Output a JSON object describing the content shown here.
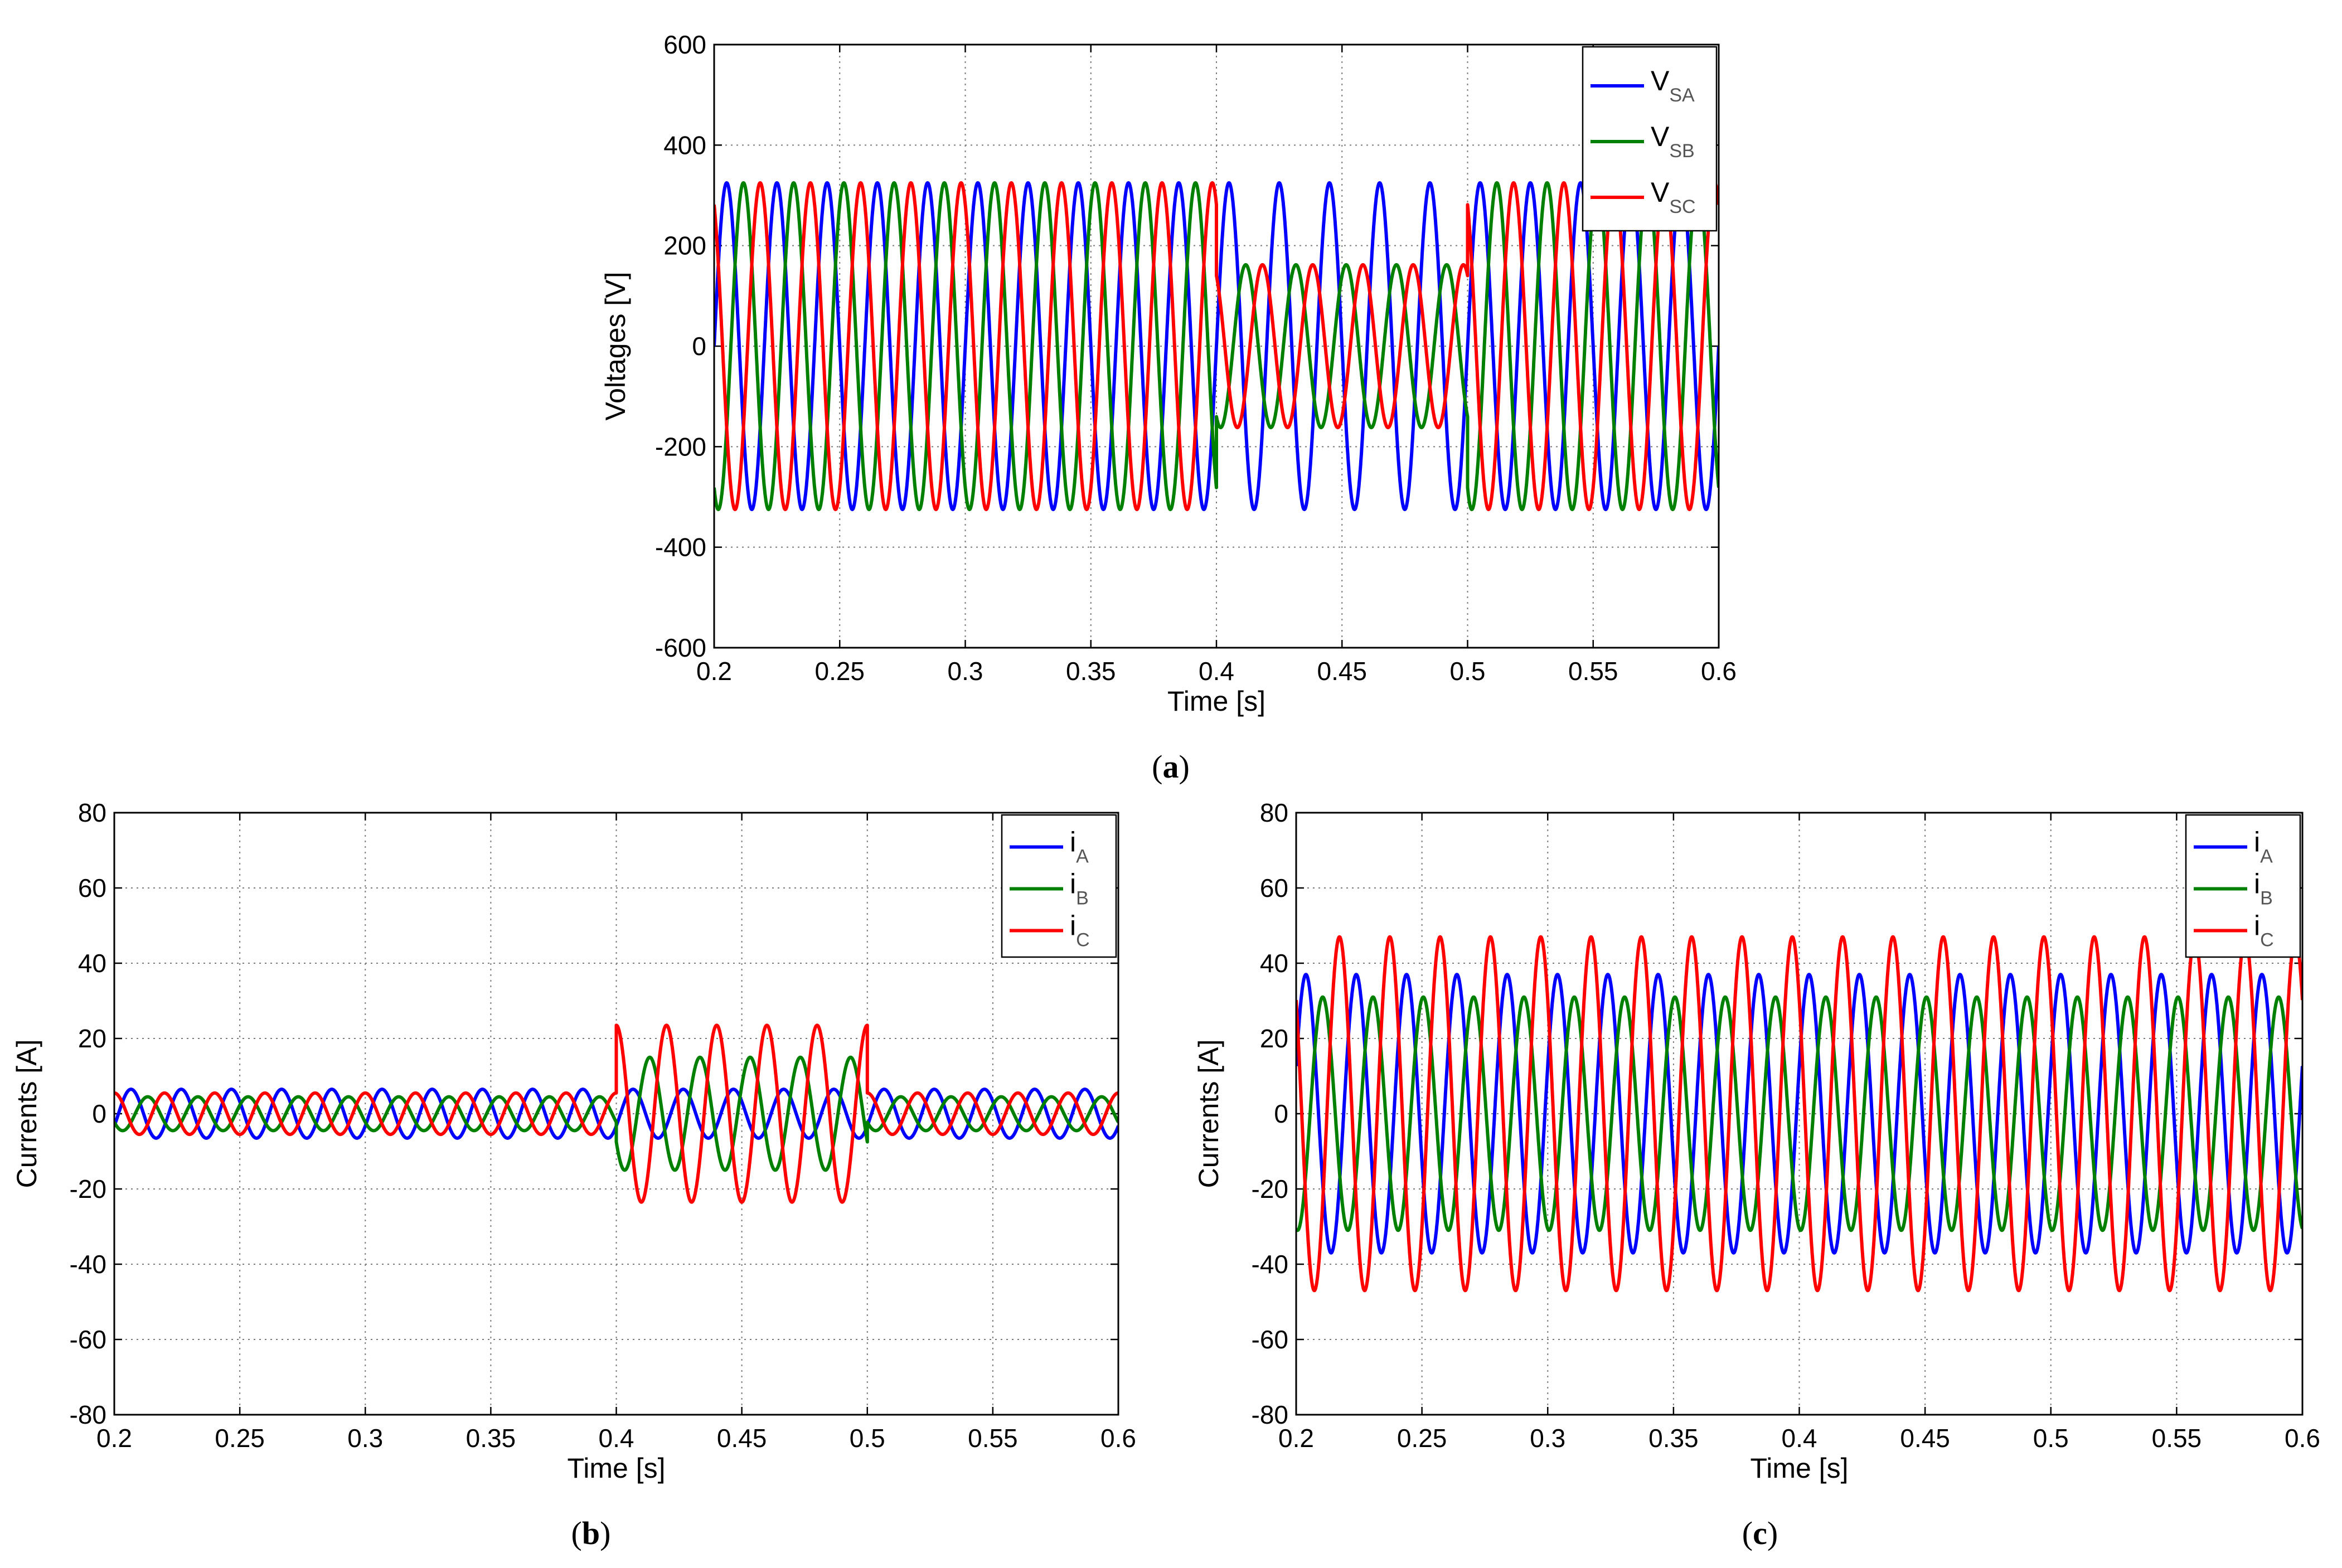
{
  "chart_data": [
    {
      "type": "line",
      "caption": "a",
      "xlabel": "Time [s]",
      "ylabel": "Voltages [V]",
      "xlim": [
        0.2,
        0.6
      ],
      "ylim": [
        -600,
        600
      ],
      "xticks": [
        "0.2",
        "0.25",
        "0.3",
        "0.35",
        "0.4",
        "0.45",
        "0.5",
        "0.55",
        "0.6"
      ],
      "yticks": [
        "-600",
        "-400",
        "-200",
        "0",
        "200",
        "400",
        "600"
      ],
      "grid": true,
      "legend_position": "top-right",
      "frequency_hz": 50,
      "series": [
        {
          "name": "V",
          "sub": "SA",
          "color": "#0000ff",
          "phase_deg": 0,
          "segments": [
            {
              "t0": 0.2,
              "t1": 0.6,
              "amplitude": 325
            }
          ]
        },
        {
          "name": "V",
          "sub": "SB",
          "color": "#008000",
          "phase_deg": -120,
          "segments": [
            {
              "t0": 0.2,
              "t1": 0.4,
              "amplitude": 325
            },
            {
              "t0": 0.4,
              "t1": 0.5,
              "amplitude": 162
            },
            {
              "t0": 0.5,
              "t1": 0.6,
              "amplitude": 325
            }
          ]
        },
        {
          "name": "V",
          "sub": "SC",
          "color": "#ff0000",
          "phase_deg": 120,
          "segments": [
            {
              "t0": 0.2,
              "t1": 0.4,
              "amplitude": 325
            },
            {
              "t0": 0.4,
              "t1": 0.5,
              "amplitude": 162
            },
            {
              "t0": 0.5,
              "t1": 0.6,
              "amplitude": 325
            }
          ]
        }
      ]
    },
    {
      "type": "line",
      "caption": "b",
      "xlabel": "Time [s]",
      "ylabel": "Currents [A]",
      "xlim": [
        0.2,
        0.6
      ],
      "ylim": [
        -80,
        80
      ],
      "xticks": [
        "0.2",
        "0.25",
        "0.3",
        "0.35",
        "0.4",
        "0.45",
        "0.5",
        "0.55",
        "0.6"
      ],
      "yticks": [
        "-80",
        "-60",
        "-40",
        "-20",
        "0",
        "20",
        "40",
        "60",
        "80"
      ],
      "grid": true,
      "legend_position": "top-right",
      "frequency_hz": 50,
      "series": [
        {
          "name": "i",
          "sub": "A",
          "color": "#0000ff",
          "phase_deg": -30,
          "segments": [
            {
              "t0": 0.2,
              "t1": 0.6,
              "amplitude": 6.5
            }
          ]
        },
        {
          "name": "i",
          "sub": "B",
          "color": "#008000",
          "phase_deg": -150,
          "segments": [
            {
              "t0": 0.2,
              "t1": 0.4,
              "amplitude": 4.5
            },
            {
              "t0": 0.4,
              "t1": 0.5,
              "amplitude": 15
            },
            {
              "t0": 0.5,
              "t1": 0.6,
              "amplitude": 4.5
            }
          ]
        },
        {
          "name": "i",
          "sub": "C",
          "color": "#ff0000",
          "phase_deg": 90,
          "segments": [
            {
              "t0": 0.2,
              "t1": 0.4,
              "amplitude": 5.5
            },
            {
              "t0": 0.4,
              "t1": 0.5,
              "amplitude": 23.5
            },
            {
              "t0": 0.5,
              "t1": 0.6,
              "amplitude": 5.5
            }
          ]
        }
      ]
    },
    {
      "type": "line",
      "caption": "c",
      "xlabel": "Time [s]",
      "ylabel": "Currents [A]",
      "xlim": [
        0.2,
        0.6
      ],
      "ylim": [
        -80,
        80
      ],
      "xticks": [
        "0.2",
        "0.25",
        "0.3",
        "0.35",
        "0.4",
        "0.45",
        "0.5",
        "0.55",
        "0.6"
      ],
      "yticks": [
        "-80",
        "-60",
        "-40",
        "-20",
        "0",
        "20",
        "40",
        "60",
        "80"
      ],
      "grid": true,
      "legend_position": "top-right",
      "frequency_hz": 50,
      "series": [
        {
          "name": "i",
          "sub": "A",
          "color": "#0000ff",
          "phase_deg": 20,
          "segments": [
            {
              "t0": 0.2,
              "t1": 0.6,
              "amplitude": 37
            }
          ]
        },
        {
          "name": "i",
          "sub": "B",
          "color": "#008000",
          "phase_deg": -100,
          "segments": [
            {
              "t0": 0.2,
              "t1": 0.6,
              "amplitude": 31
            }
          ]
        },
        {
          "name": "i",
          "sub": "C",
          "color": "#ff0000",
          "phase_deg": 140,
          "segments": [
            {
              "t0": 0.2,
              "t1": 0.6,
              "amplitude": 47
            }
          ]
        }
      ]
    }
  ]
}
